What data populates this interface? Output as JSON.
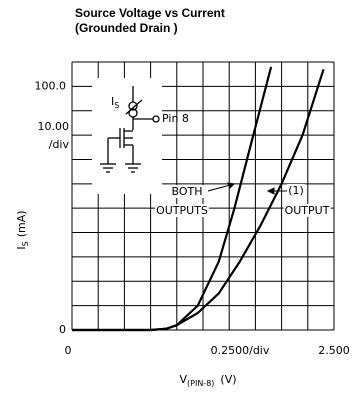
{
  "chart_data": {
    "type": "line",
    "title": [
      "Source Voltage vs Current",
      "(Grounded Drain )"
    ],
    "ylabel": {
      "main": "I",
      "sub": "S",
      "unit": "(mA)"
    },
    "xlabel": {
      "main": "V",
      "sub": "(PIN-8)",
      "unit": "(V)"
    },
    "xlim": [
      0,
      2.5
    ],
    "ylim": [
      0,
      110
    ],
    "xticks": [
      0,
      {
        "value": 2.5,
        "label": "2.500"
      }
    ],
    "yticks": [
      0,
      {
        "value": 100,
        "label": "100.0"
      }
    ],
    "xgrid": [
      0,
      0.25,
      0.5,
      0.75,
      1,
      1.25,
      1.5,
      1.75,
      2,
      2.25,
      2.5
    ],
    "ygrid": [
      0,
      10,
      20,
      30,
      40,
      50,
      60,
      70,
      80,
      90,
      100,
      110
    ],
    "x_scale_note": "0.2500/div",
    "y_scale_note": [
      "10.00",
      "/div"
    ],
    "schematic": {
      "current": {
        "main": "I",
        "sub": "S"
      },
      "pin": "Pin 8"
    },
    "series": [
      {
        "name": [
          "BOTH",
          "OUTPUTS"
        ],
        "color": "#000",
        "x": [
          0,
          0.75,
          0.9,
          1.0,
          1.2,
          1.4,
          1.55,
          1.7,
          1.9
        ],
        "values": [
          0,
          0,
          0.5,
          2,
          10,
          28,
          50,
          75,
          108
        ]
      },
      {
        "name": [
          "(1)",
          "OUTPUT"
        ],
        "color": "#000",
        "x": [
          0,
          0.75,
          0.9,
          1.0,
          1.2,
          1.4,
          1.6,
          1.8,
          2.0,
          2.2,
          2.4
        ],
        "values": [
          0,
          0,
          0.5,
          2,
          7,
          15,
          28,
          43,
          60,
          80,
          107
        ]
      }
    ]
  }
}
